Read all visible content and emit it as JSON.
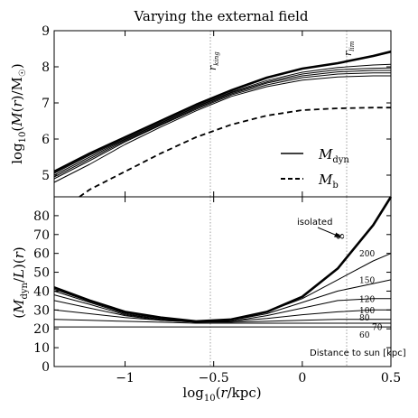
{
  "title": "Varying the external field",
  "chart_data": [
    {
      "type": "line",
      "panel": "top",
      "ylabel": "log₁₀(M(r)/M☉)",
      "xlim": [
        -1.4,
        0.5
      ],
      "ylim": [
        4.4,
        9.0
      ],
      "yticks": [
        5,
        6,
        7,
        8,
        9
      ],
      "series": [
        {
          "name": "M_dyn",
          "style": "thick",
          "x": [
            -1.4,
            -1.2,
            -1.0,
            -0.8,
            -0.6,
            -0.4,
            -0.2,
            0.0,
            0.2,
            0.4,
            0.5
          ],
          "y": [
            5.1,
            5.6,
            6.05,
            6.5,
            6.95,
            7.35,
            7.7,
            7.95,
            8.1,
            8.3,
            8.42
          ]
        },
        {
          "style": "thin",
          "x": [
            -1.4,
            -1.2,
            -1.0,
            -0.8,
            -0.6,
            -0.4,
            -0.2,
            0.0,
            0.2,
            0.4,
            0.5
          ],
          "y": [
            5.05,
            5.55,
            6.0,
            6.45,
            6.9,
            7.3,
            7.62,
            7.85,
            7.98,
            8.05,
            8.07
          ]
        },
        {
          "style": "thin",
          "x": [
            -1.4,
            -1.2,
            -1.0,
            -0.8,
            -0.6,
            -0.4,
            -0.2,
            0.0,
            0.2,
            0.4,
            0.5
          ],
          "y": [
            5.0,
            5.5,
            5.98,
            6.43,
            6.88,
            7.28,
            7.58,
            7.8,
            7.92,
            7.96,
            7.97
          ]
        },
        {
          "style": "thin",
          "x": [
            -1.4,
            -1.2,
            -1.0,
            -0.8,
            -0.6,
            -0.4,
            -0.2,
            0.0,
            0.2,
            0.4,
            0.5
          ],
          "y": [
            4.95,
            5.45,
            5.95,
            6.4,
            6.85,
            7.25,
            7.55,
            7.75,
            7.86,
            7.9,
            7.9
          ]
        },
        {
          "style": "thin",
          "x": [
            -1.4,
            -1.2,
            -1.0,
            -0.8,
            -0.6,
            -0.4,
            -0.2,
            0.0,
            0.2,
            0.4,
            0.5
          ],
          "y": [
            4.9,
            5.4,
            5.92,
            6.38,
            6.82,
            7.22,
            7.5,
            7.7,
            7.8,
            7.83,
            7.83
          ]
        },
        {
          "style": "thin",
          "x": [
            -1.4,
            -1.2,
            -1.0,
            -0.8,
            -0.6,
            -0.4,
            -0.2,
            0.0,
            0.2,
            0.4,
            0.5
          ],
          "y": [
            4.8,
            5.3,
            5.85,
            6.33,
            6.78,
            7.18,
            7.45,
            7.63,
            7.72,
            7.75,
            7.75
          ]
        },
        {
          "name": "M_b",
          "style": "dashed",
          "x": [
            -1.4,
            -1.2,
            -1.0,
            -0.8,
            -0.6,
            -0.4,
            -0.2,
            0.0,
            0.2,
            0.4,
            0.5
          ],
          "y": [
            3.9,
            4.6,
            5.1,
            5.6,
            6.05,
            6.4,
            6.65,
            6.8,
            6.85,
            6.87,
            6.87
          ]
        }
      ],
      "legend": {
        "placement": "lower-right",
        "entries": [
          "M_dyn",
          "M_b"
        ]
      },
      "vlines": [
        {
          "x": -0.52,
          "label": "r_king"
        },
        {
          "x": 0.26,
          "label": "r_lim"
        }
      ]
    },
    {
      "type": "line",
      "panel": "bottom",
      "xlabel": "log₁₀(r/kpc)",
      "ylabel": "(M_dyn/L)(r)",
      "xlim": [
        -1.4,
        0.5
      ],
      "ylim": [
        0,
        90
      ],
      "xticks": [
        -1.0,
        -0.5,
        0.0,
        0.5
      ],
      "yticks": [
        0,
        10,
        20,
        30,
        40,
        50,
        60,
        70,
        80
      ],
      "series": [
        {
          "name": "∞",
          "style": "thick",
          "x": [
            -1.4,
            -1.2,
            -1.0,
            -0.8,
            -0.6,
            -0.4,
            -0.2,
            0.0,
            0.2,
            0.4,
            0.5
          ],
          "y": [
            42,
            35,
            29,
            26,
            24,
            25,
            29,
            37,
            52,
            75,
            90
          ]
        },
        {
          "name": "200",
          "style": "thin",
          "x": [
            -1.4,
            -1.2,
            -1.0,
            -0.8,
            -0.6,
            -0.4,
            -0.2,
            0.0,
            0.2,
            0.4,
            0.5
          ],
          "y": [
            41,
            34.5,
            28.5,
            25.5,
            24,
            25,
            29,
            36,
            46,
            56,
            60
          ]
        },
        {
          "name": "150",
          "style": "thin",
          "x": [
            -1.4,
            -1.2,
            -1.0,
            -0.8,
            -0.6,
            -0.4,
            -0.2,
            0.0,
            0.2,
            0.4,
            0.5
          ],
          "y": [
            40,
            34,
            28,
            25,
            23.5,
            24.5,
            28,
            34,
            40,
            44,
            46
          ]
        },
        {
          "name": "120",
          "style": "thin",
          "x": [
            -1.4,
            -1.2,
            -1.0,
            -0.8,
            -0.6,
            -0.4,
            -0.2,
            0.0,
            0.2,
            0.4,
            0.5
          ],
          "y": [
            38,
            33,
            27.5,
            25,
            23.5,
            24,
            27,
            31,
            35,
            36,
            36
          ]
        },
        {
          "name": "100",
          "style": "thin",
          "x": [
            -1.4,
            -1.2,
            -1.0,
            -0.8,
            -0.6,
            -0.4,
            -0.2,
            0.0,
            0.2,
            0.4,
            0.5
          ],
          "y": [
            35,
            31,
            27,
            24.5,
            23.5,
            24,
            25.5,
            27.5,
            29,
            30,
            30
          ]
        },
        {
          "name": "80",
          "style": "thin",
          "x": [
            -1.4,
            -1.2,
            -1.0,
            -0.8,
            -0.6,
            -0.4,
            -0.2,
            0.0,
            0.2,
            0.4,
            0.5
          ],
          "y": [
            30,
            28,
            26,
            24.5,
            23.5,
            23.5,
            24,
            24.5,
            25,
            25,
            25
          ]
        },
        {
          "name": "70",
          "style": "thin",
          "x": [
            -1.4,
            -1.2,
            -1.0,
            -0.8,
            -0.6,
            -0.4,
            -0.2,
            0.0,
            0.2,
            0.4,
            0.5
          ],
          "y": [
            25,
            24.5,
            24,
            23.5,
            23,
            23,
            23,
            23,
            23,
            23,
            23
          ]
        },
        {
          "name": "60",
          "style": "thin",
          "x": [
            -1.4,
            -1.2,
            -1.0,
            -0.8,
            -0.6,
            -0.4,
            -0.2,
            0.0,
            0.2,
            0.4,
            0.5
          ],
          "y": [
            21,
            21,
            21,
            21,
            21,
            21,
            21,
            21,
            21,
            21,
            21
          ]
        }
      ],
      "annotations": {
        "isolated": "isolated",
        "distance": "Distance to sun [kpc]"
      },
      "vlines": [
        {
          "x": -0.52
        },
        {
          "x": 0.26
        }
      ]
    }
  ]
}
